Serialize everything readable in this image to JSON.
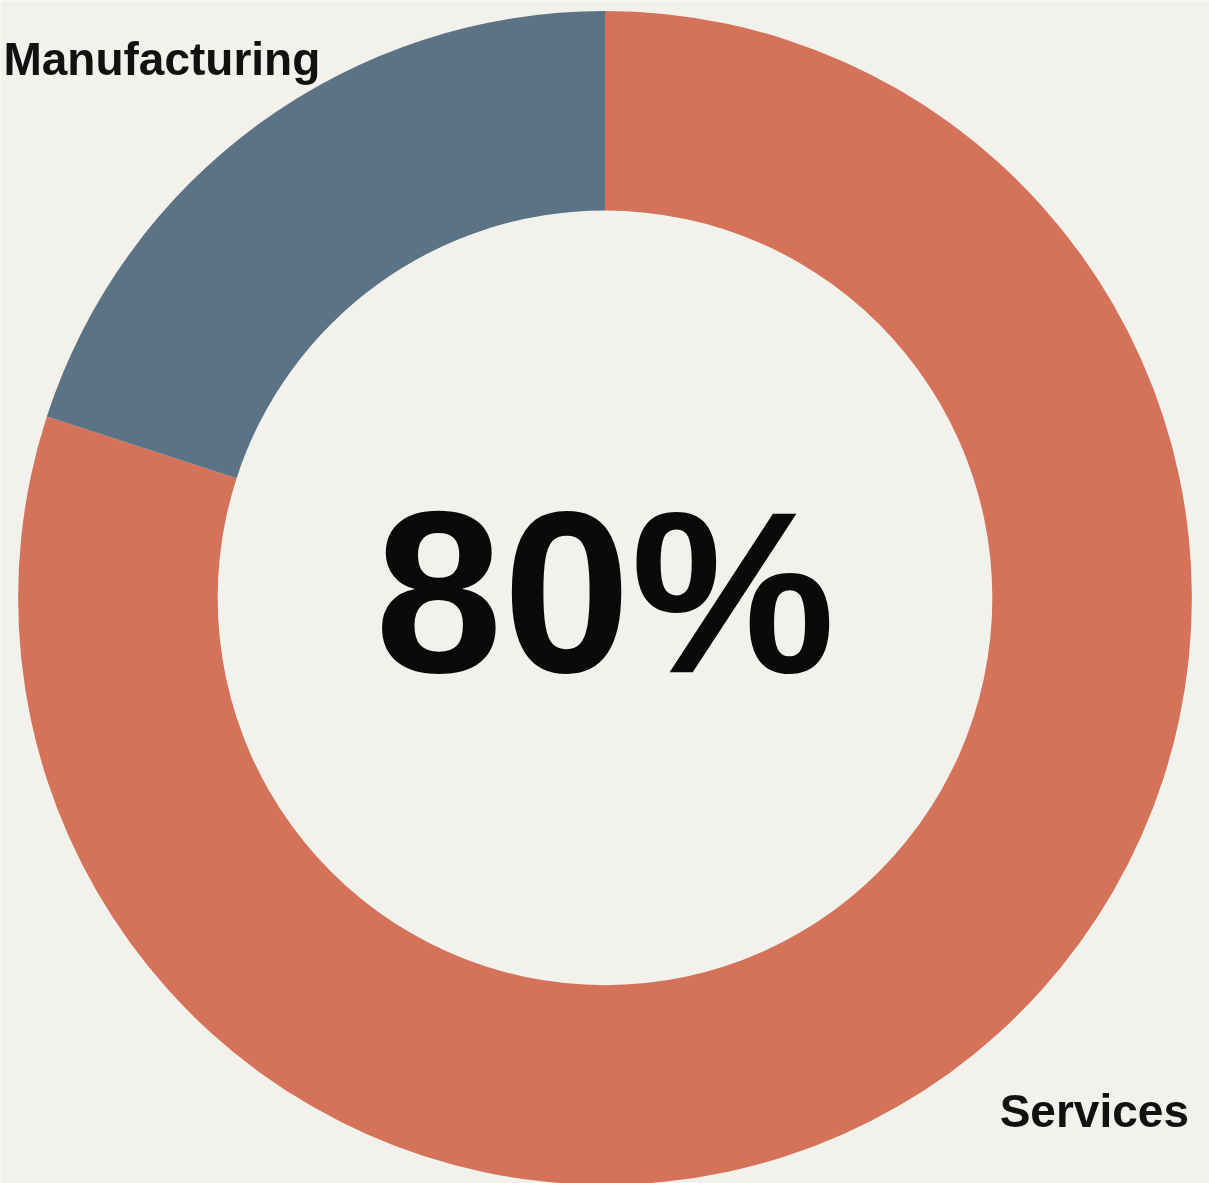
{
  "chart_data": {
    "type": "donut",
    "categories": [
      "Services",
      "Manufacturing"
    ],
    "values": [
      80,
      20
    ],
    "colors": [
      "#d4735a",
      "#5b7384"
    ],
    "annotations": [
      "80%"
    ]
  }
}
